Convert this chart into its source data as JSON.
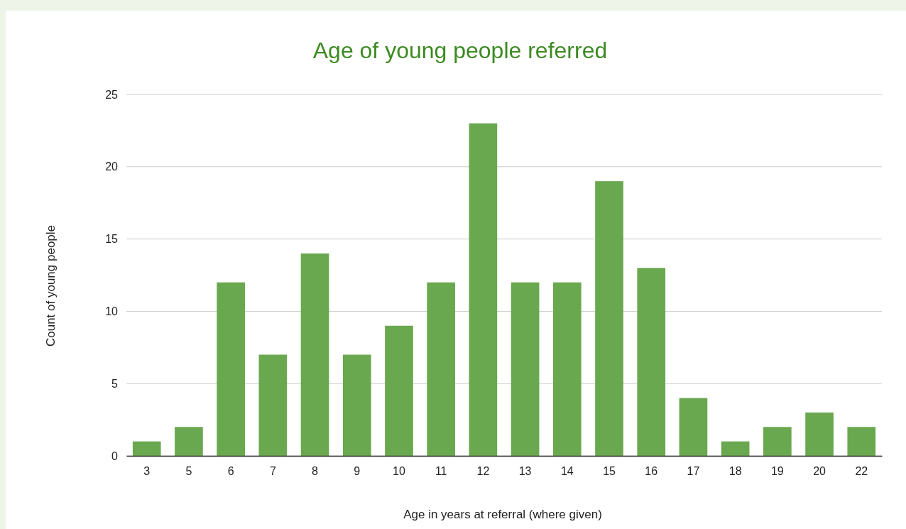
{
  "chart_data": {
    "type": "bar",
    "title": "Age of young people referred",
    "xlabel": "Age in years at referral (where given)",
    "ylabel": "Count of young people",
    "categories": [
      "3",
      "5",
      "6",
      "7",
      "8",
      "9",
      "10",
      "11",
      "12",
      "13",
      "14",
      "15",
      "16",
      "17",
      "18",
      "19",
      "20",
      "22"
    ],
    "values": [
      1,
      2,
      12,
      7,
      14,
      7,
      9,
      12,
      23,
      12,
      12,
      19,
      13,
      4,
      1,
      2,
      3,
      2
    ],
    "color": "#6aa84f",
    "ylim": [
      0,
      25
    ],
    "yticks": [
      0,
      5,
      10,
      15,
      20,
      25
    ],
    "grid": "y"
  }
}
